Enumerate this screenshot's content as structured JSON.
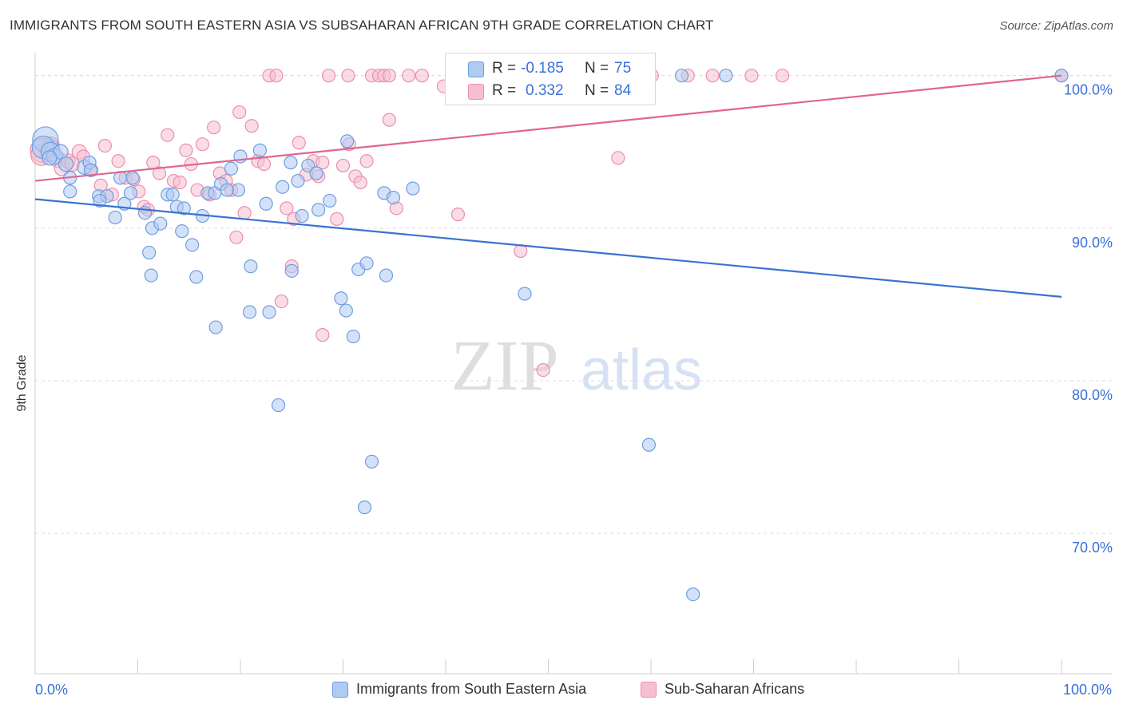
{
  "header": {
    "title": "IMMIGRANTS FROM SOUTH EASTERN ASIA VS SUBSAHARAN AFRICAN 9TH GRADE CORRELATION CHART",
    "source": "Source: ZipAtlas.com"
  },
  "watermark": {
    "zip": "ZIP",
    "atlas": "atlas"
  },
  "legend": {
    "rows": [
      {
        "r_label": "R =",
        "r_value": "-0.185",
        "n_label": "N =",
        "n_value": "75"
      },
      {
        "r_label": "R =",
        "r_value": "0.332",
        "n_label": "N =",
        "n_value": "84"
      }
    ]
  },
  "colors": {
    "blue_fill": "#aecbf3",
    "blue_stroke": "#6f9ee0",
    "blue_line": "#3a73d0",
    "pink_fill": "#f6bfd0",
    "pink_stroke": "#ea8fae",
    "pink_line": "#e0668f",
    "tick_label": "#3a6fd8",
    "grid": "#dddddd"
  },
  "chart_data": {
    "type": "scatter",
    "title": "IMMIGRANTS FROM SOUTH EASTERN ASIA VS SUBSAHARAN AFRICAN 9TH GRADE CORRELATION CHART",
    "xlabel": "",
    "ylabel": "9th Grade",
    "xlim": [
      0,
      100
    ],
    "ylim": [
      60.8,
      101.5
    ],
    "x_tick_labels": [
      "0.0%",
      "100.0%"
    ],
    "y_ticks": [
      70,
      80,
      90,
      100
    ],
    "y_tick_labels": [
      "70.0%",
      "80.0%",
      "90.0%",
      "100.0%"
    ],
    "grid": true,
    "legend_position": "bottom",
    "series": [
      {
        "name": "Immigrants from South Eastern Asia",
        "color": "#aecbf3",
        "trend": {
          "x": [
            0,
            100
          ],
          "y": [
            91.9,
            85.5
          ]
        },
        "points": [
          [
            1.0,
            95.8,
            16
          ],
          [
            0.8,
            95.3,
            14
          ],
          [
            1.5,
            95.0,
            12
          ],
          [
            1.9,
            94.7,
            10
          ],
          [
            2.5,
            95.0,
            9
          ],
          [
            1.4,
            94.6,
            9
          ],
          [
            3.0,
            94.2,
            9
          ],
          [
            4.8,
            94.0,
            9
          ],
          [
            5.3,
            94.3,
            8
          ],
          [
            3.4,
            93.3,
            8
          ],
          [
            5.4,
            93.8,
            8
          ],
          [
            3.4,
            92.4,
            8
          ],
          [
            6.2,
            92.1,
            8
          ],
          [
            7.0,
            92.1,
            8
          ],
          [
            6.3,
            91.8,
            8
          ],
          [
            8.7,
            91.6,
            8
          ],
          [
            7.8,
            90.7,
            8
          ],
          [
            8.3,
            93.3,
            8
          ],
          [
            9.5,
            93.3,
            8
          ],
          [
            9.3,
            92.3,
            8
          ],
          [
            10.7,
            91.0,
            8
          ],
          [
            11.4,
            90.0,
            8
          ],
          [
            12.2,
            90.3,
            8
          ],
          [
            12.9,
            92.2,
            8
          ],
          [
            13.4,
            92.2,
            8
          ],
          [
            13.8,
            91.4,
            8
          ],
          [
            14.5,
            91.3,
            8
          ],
          [
            14.3,
            89.8,
            8
          ],
          [
            15.3,
            88.9,
            8
          ],
          [
            16.3,
            90.8,
            8
          ],
          [
            16.8,
            92.3,
            8
          ],
          [
            17.5,
            92.3,
            8
          ],
          [
            18.1,
            92.9,
            8
          ],
          [
            19.1,
            93.9,
            8
          ],
          [
            19.8,
            92.5,
            8
          ],
          [
            18.7,
            92.5,
            8
          ],
          [
            20.0,
            94.7,
            8
          ],
          [
            21.9,
            95.1,
            8
          ],
          [
            22.5,
            91.6,
            8
          ],
          [
            24.1,
            92.7,
            8
          ],
          [
            24.9,
            94.3,
            8
          ],
          [
            25.6,
            93.1,
            8
          ],
          [
            26.0,
            90.8,
            8
          ],
          [
            26.6,
            94.1,
            8
          ],
          [
            27.4,
            93.6,
            8
          ],
          [
            27.6,
            91.2,
            8
          ],
          [
            28.7,
            91.8,
            8
          ],
          [
            30.4,
            95.7,
            8
          ],
          [
            34.0,
            92.3,
            8
          ],
          [
            34.9,
            92.0,
            8
          ],
          [
            36.8,
            92.6,
            8
          ],
          [
            11.1,
            88.4,
            8
          ],
          [
            11.3,
            86.9,
            8
          ],
          [
            15.7,
            86.8,
            8
          ],
          [
            21.0,
            87.5,
            8
          ],
          [
            25.0,
            87.2,
            8
          ],
          [
            29.8,
            85.4,
            8
          ],
          [
            31.5,
            87.3,
            8
          ],
          [
            32.3,
            87.7,
            8
          ],
          [
            34.2,
            86.9,
            8
          ],
          [
            20.9,
            84.5,
            8
          ],
          [
            22.8,
            84.5,
            8
          ],
          [
            30.3,
            84.6,
            8
          ],
          [
            17.6,
            83.5,
            8
          ],
          [
            31.0,
            82.9,
            8
          ],
          [
            47.7,
            85.7,
            8
          ],
          [
            23.7,
            78.4,
            8
          ],
          [
            32.8,
            74.7,
            8
          ],
          [
            32.1,
            71.7,
            8
          ],
          [
            59.8,
            75.8,
            8
          ],
          [
            64.1,
            66.0,
            8
          ],
          [
            43.7,
            100.0,
            8
          ],
          [
            63.0,
            100.0,
            8
          ],
          [
            67.3,
            100.0,
            8
          ],
          [
            100.0,
            100.0,
            8
          ]
        ]
      },
      {
        "name": "Sub-Saharan Africans",
        "color": "#f6bfd0",
        "trend": {
          "x": [
            0,
            100
          ],
          "y": [
            93.1,
            100.0
          ]
        },
        "points": [
          [
            0.7,
            95.1,
            15
          ],
          [
            0.6,
            94.8,
            13
          ],
          [
            1.5,
            95.4,
            11
          ],
          [
            2.2,
            94.5,
            10
          ],
          [
            2.6,
            93.9,
            9
          ],
          [
            1.6,
            95.3,
            9
          ],
          [
            3.2,
            94.4,
            9
          ],
          [
            3.6,
            94.2,
            9
          ],
          [
            4.3,
            95.0,
            9
          ],
          [
            4.7,
            94.7,
            8
          ],
          [
            5.5,
            93.8,
            8
          ],
          [
            6.4,
            92.8,
            8
          ],
          [
            6.8,
            95.4,
            8
          ],
          [
            7.5,
            92.2,
            8
          ],
          [
            8.1,
            94.4,
            8
          ],
          [
            8.8,
            93.3,
            8
          ],
          [
            9.6,
            93.2,
            8
          ],
          [
            10.1,
            92.4,
            8
          ],
          [
            10.6,
            91.4,
            8
          ],
          [
            11.0,
            91.2,
            8
          ],
          [
            11.5,
            94.3,
            8
          ],
          [
            12.1,
            93.6,
            8
          ],
          [
            12.9,
            96.1,
            8
          ],
          [
            13.5,
            93.1,
            8
          ],
          [
            14.1,
            93.0,
            8
          ],
          [
            14.7,
            95.1,
            8
          ],
          [
            15.2,
            94.2,
            8
          ],
          [
            15.8,
            92.5,
            8
          ],
          [
            16.3,
            95.5,
            8
          ],
          [
            17.0,
            92.2,
            8
          ],
          [
            17.4,
            96.6,
            8
          ],
          [
            18.0,
            93.6,
            8
          ],
          [
            18.6,
            93.1,
            8
          ],
          [
            19.1,
            92.5,
            8
          ],
          [
            19.6,
            89.4,
            8
          ],
          [
            19.9,
            97.6,
            8
          ],
          [
            20.4,
            91.0,
            8
          ],
          [
            21.1,
            96.7,
            8
          ],
          [
            21.7,
            94.4,
            8
          ],
          [
            22.3,
            94.2,
            8
          ],
          [
            22.8,
            100.0,
            8
          ],
          [
            23.5,
            100.0,
            8
          ],
          [
            24.0,
            85.2,
            8
          ],
          [
            24.5,
            91.3,
            8
          ],
          [
            25.2,
            90.6,
            8
          ],
          [
            25.7,
            95.6,
            8
          ],
          [
            26.4,
            93.5,
            8
          ],
          [
            27.1,
            94.4,
            8
          ],
          [
            27.6,
            93.4,
            8
          ],
          [
            28.0,
            94.3,
            8
          ],
          [
            28.6,
            100.0,
            8
          ],
          [
            29.4,
            90.6,
            8
          ],
          [
            30.0,
            94.1,
            8
          ],
          [
            30.6,
            95.5,
            8
          ],
          [
            31.2,
            93.4,
            8
          ],
          [
            31.7,
            93.0,
            8
          ],
          [
            32.3,
            94.4,
            8
          ],
          [
            32.8,
            100.0,
            8
          ],
          [
            33.5,
            100.0,
            8
          ],
          [
            34.0,
            100.0,
            8
          ],
          [
            34.5,
            97.1,
            8
          ],
          [
            35.2,
            91.3,
            8
          ],
          [
            36.4,
            100.0,
            8
          ],
          [
            37.7,
            100.0,
            8
          ],
          [
            39.8,
            99.3,
            8
          ],
          [
            41.2,
            90.9,
            8
          ],
          [
            42.7,
            99.5,
            8
          ],
          [
            47.1,
            99.1,
            8
          ],
          [
            47.5,
            100.0,
            8
          ],
          [
            49.3,
            100.0,
            8
          ],
          [
            56.8,
            94.6,
            8
          ],
          [
            59.1,
            100.0,
            8
          ],
          [
            60.1,
            100.0,
            8
          ],
          [
            63.6,
            100.0,
            8
          ],
          [
            66.0,
            100.0,
            8
          ],
          [
            69.8,
            100.0,
            8
          ],
          [
            72.8,
            100.0,
            8
          ],
          [
            100.0,
            100.0,
            8
          ],
          [
            47.3,
            88.5,
            8
          ],
          [
            49.5,
            80.7,
            8
          ],
          [
            28.0,
            83.0,
            8
          ],
          [
            25.0,
            87.5,
            8
          ],
          [
            30.5,
            100.0,
            8
          ],
          [
            34.5,
            100.0,
            8
          ]
        ]
      }
    ]
  },
  "bottom_legend": {
    "items": [
      {
        "label": "Immigrants from South Eastern Asia"
      },
      {
        "label": "Sub-Saharan Africans"
      }
    ]
  }
}
